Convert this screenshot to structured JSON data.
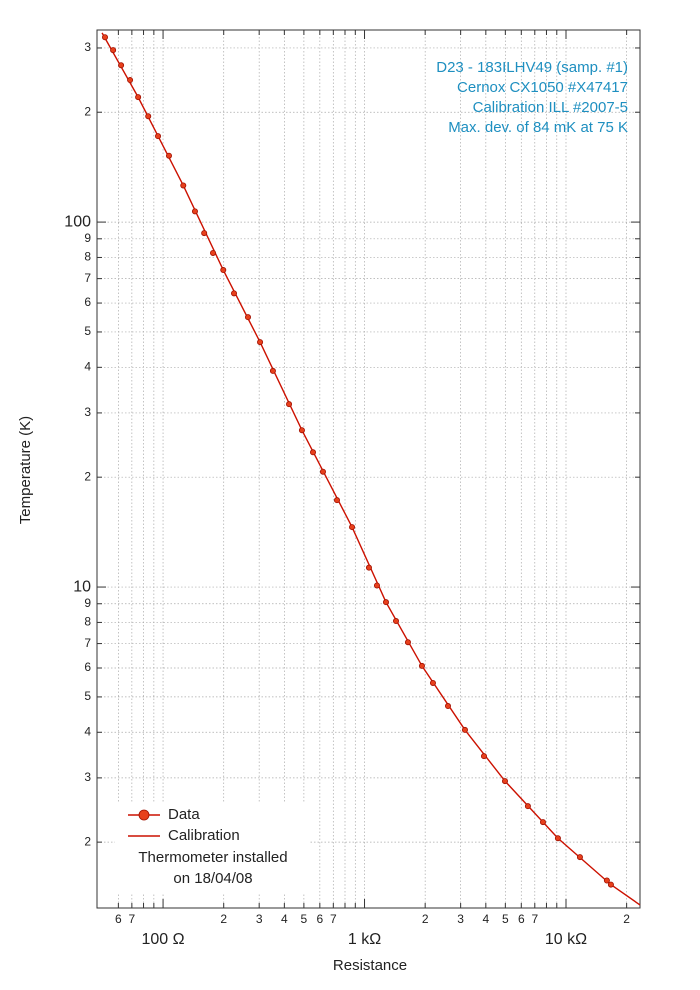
{
  "chart_data": {
    "type": "scatter",
    "x_label": "Resistance",
    "y_label": "Temperature (K)",
    "annotation": [
      "D23 - 183ILHV49 (samp. #1)",
      "Cernox CX1050 #X47417",
      "Calibration ILL #2007-5",
      "Max. dev. of 84 mK at 75 K"
    ],
    "legend_note": [
      "Thermometer installed",
      "on 18/04/08"
    ],
    "legend_position": "lower left",
    "annotation_color": "#1e8fc0",
    "log_x": true,
    "log_y": true,
    "grid": true,
    "xlim": [
      47,
      23300
    ],
    "ylim": [
      1.32,
      336
    ],
    "xticks": [
      {
        "value": 60,
        "label": "6"
      },
      {
        "value": 70,
        "label": "7"
      },
      {
        "value": 100,
        "label": "100  Ω"
      },
      {
        "value": 200,
        "label": "2"
      },
      {
        "value": 300,
        "label": "3"
      },
      {
        "value": 400,
        "label": "4"
      },
      {
        "value": 500,
        "label": "5"
      },
      {
        "value": 600,
        "label": "6"
      },
      {
        "value": 700,
        "label": "7"
      },
      {
        "value": 1000,
        "label": "1 kΩ"
      },
      {
        "value": 2000,
        "label": "2"
      },
      {
        "value": 3000,
        "label": "3"
      },
      {
        "value": 4000,
        "label": "4"
      },
      {
        "value": 5000,
        "label": "5"
      },
      {
        "value": 6000,
        "label": "6"
      },
      {
        "value": 7000,
        "label": "7"
      },
      {
        "value": 10000,
        "label": "10 kΩ"
      },
      {
        "value": 20000,
        "label": "2"
      }
    ],
    "xminor": [
      80,
      90,
      800,
      900,
      8000,
      9000
    ],
    "yticks": [
      {
        "value": 300,
        "label": "3"
      },
      {
        "value": 200,
        "label": "2"
      },
      100,
      {
        "value": 90,
        "label": "9"
      },
      {
        "value": 80,
        "label": "8"
      },
      {
        "value": 70,
        "label": "7"
      },
      {
        "value": 60,
        "label": "6"
      },
      {
        "value": 50,
        "label": "5"
      },
      {
        "value": 40,
        "label": "4"
      },
      {
        "value": 30,
        "label": "3"
      },
      {
        "value": 20,
        "label": "2"
      },
      10,
      9,
      8,
      7,
      6,
      5,
      4,
      3,
      2
    ],
    "series": [
      {
        "name": "Data",
        "color": "#e8401c",
        "x": [
          51.5,
          56.5,
          61.9,
          68.6,
          75.2,
          84.4,
          94.4,
          107,
          126,
          144,
          160,
          177,
          199,
          225,
          264,
          303,
          351,
          422,
          489,
          555,
          622,
          730,
          867,
          1052,
          1153,
          1278,
          1433,
          1643,
          1928,
          2186,
          2596,
          3152,
          3917,
          4980,
          6471,
          7688,
          9120,
          11730,
          15960,
          16710
        ],
        "values": [
          321,
          296,
          269,
          245,
          220,
          195,
          172,
          152,
          126,
          107,
          93.3,
          82.3,
          73.9,
          63.8,
          54.9,
          46.9,
          39.1,
          31.7,
          26.9,
          23.4,
          20.7,
          17.3,
          14.6,
          11.3,
          10.1,
          9.09,
          8.07,
          7.06,
          6.08,
          5.46,
          4.72,
          4.06,
          3.44,
          2.94,
          2.51,
          2.27,
          2.05,
          1.82,
          1.57,
          1.53
        ]
      },
      {
        "name": "Calibration",
        "color": "#cc1100",
        "x": [
          49.8,
          75.2,
          126,
          199,
          303,
          489,
          867,
          1278,
          1928,
          3152,
          4980,
          9120,
          16710,
          23280
        ],
        "values": [
          330,
          220,
          126,
          73.9,
          46.9,
          26.9,
          14.6,
          9.09,
          6.08,
          4.06,
          2.94,
          2.05,
          1.53,
          1.346
        ]
      }
    ]
  }
}
